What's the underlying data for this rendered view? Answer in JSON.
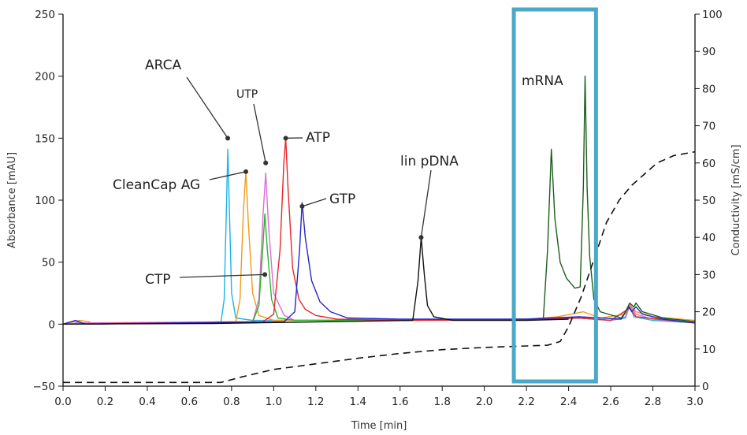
{
  "chart_data": {
    "type": "line",
    "title": "",
    "xlabel": "Time [min]",
    "ylabel": "Absorbance [mAU]",
    "y2label": "Conductivity [mS/cm]",
    "xlim": [
      0,
      3.0
    ],
    "ylim": [
      -50,
      250
    ],
    "y2lim": [
      0,
      100
    ],
    "x_ticks": [
      "0.0",
      "0.2",
      "0.4",
      "0.6",
      "0.8",
      "1.0",
      "1.2",
      "1.4",
      "1.6",
      "1.8",
      "2.0",
      "2.2",
      "2.4",
      "2.6",
      "2.8",
      "3.0"
    ],
    "y_ticks": [
      "-50",
      "0",
      "50",
      "100",
      "150",
      "200",
      "250"
    ],
    "y2_ticks": [
      "0",
      "10",
      "20",
      "30",
      "40",
      "50",
      "60",
      "70",
      "80",
      "90",
      "100"
    ],
    "highlight": {
      "label": "mRNA",
      "x_range": [
        2.14,
        2.53
      ],
      "color": "#4aa8c8"
    },
    "series": [
      {
        "name": "ARCA",
        "color": "#1ab4e6",
        "axis": "left",
        "points": [
          [
            0,
            0
          ],
          [
            0.05,
            0
          ],
          [
            0.07,
            2
          ],
          [
            0.09,
            1
          ],
          [
            0.1,
            0
          ],
          [
            0.7,
            1.5
          ],
          [
            0.75,
            2
          ],
          [
            0.765,
            20
          ],
          [
            0.775,
            90
          ],
          [
            0.782,
            141
          ],
          [
            0.79,
            90
          ],
          [
            0.8,
            25
          ],
          [
            0.82,
            5
          ],
          [
            0.9,
            3
          ],
          [
            1.6,
            3.5
          ],
          [
            2.2,
            4
          ],
          [
            2.45,
            5
          ],
          [
            2.6,
            3
          ],
          [
            2.67,
            5
          ],
          [
            2.69,
            15
          ],
          [
            2.71,
            6
          ],
          [
            2.8,
            3
          ],
          [
            3.0,
            1
          ]
        ]
      },
      {
        "name": "CleanCap AG",
        "color": "#f29a1a",
        "axis": "left",
        "points": [
          [
            0,
            0
          ],
          [
            0.08,
            3
          ],
          [
            0.12,
            2
          ],
          [
            0.15,
            0
          ],
          [
            0.82,
            2
          ],
          [
            0.84,
            20
          ],
          [
            0.856,
            90
          ],
          [
            0.868,
            123
          ],
          [
            0.88,
            80
          ],
          [
            0.9,
            25
          ],
          [
            0.93,
            7
          ],
          [
            1.0,
            3
          ],
          [
            1.6,
            3
          ],
          [
            2.2,
            4
          ],
          [
            2.35,
            6
          ],
          [
            2.47,
            10
          ],
          [
            2.55,
            5
          ],
          [
            2.67,
            8
          ],
          [
            2.69,
            16
          ],
          [
            2.72,
            10
          ],
          [
            2.8,
            6
          ],
          [
            3.0,
            3
          ]
        ]
      },
      {
        "name": "UTP",
        "color": "#e06ad8",
        "axis": "left",
        "points": [
          [
            0,
            0
          ],
          [
            0.08,
            1
          ],
          [
            0.9,
            2
          ],
          [
            0.93,
            20
          ],
          [
            0.95,
            90
          ],
          [
            0.962,
            122
          ],
          [
            0.975,
            80
          ],
          [
            1.0,
            25
          ],
          [
            1.05,
            7
          ],
          [
            1.1,
            3
          ],
          [
            1.6,
            3.5
          ],
          [
            2.2,
            4
          ],
          [
            2.45,
            5
          ],
          [
            2.6,
            3
          ],
          [
            2.67,
            6
          ],
          [
            2.69,
            15
          ],
          [
            2.72,
            8
          ],
          [
            2.8,
            4
          ],
          [
            3.0,
            1
          ]
        ]
      },
      {
        "name": "CTP",
        "color": "#2bb52b",
        "axis": "left",
        "points": [
          [
            0,
            0
          ],
          [
            0.9,
            1.5
          ],
          [
            0.93,
            15
          ],
          [
            0.948,
            60
          ],
          [
            0.958,
            89
          ],
          [
            0.97,
            60
          ],
          [
            0.99,
            20
          ],
          [
            1.02,
            5
          ],
          [
            1.1,
            3
          ],
          [
            1.6,
            3
          ],
          [
            2.2,
            4
          ],
          [
            2.45,
            5
          ],
          [
            2.6,
            3
          ],
          [
            2.69,
            13
          ],
          [
            2.72,
            6
          ],
          [
            3.0,
            1
          ]
        ]
      },
      {
        "name": "ATP",
        "color": "#e8252a",
        "axis": "left",
        "points": [
          [
            0,
            0
          ],
          [
            0.95,
            2
          ],
          [
            1.0,
            8
          ],
          [
            1.03,
            60
          ],
          [
            1.048,
            130
          ],
          [
            1.057,
            150
          ],
          [
            1.068,
            110
          ],
          [
            1.09,
            45
          ],
          [
            1.12,
            20
          ],
          [
            1.15,
            12
          ],
          [
            1.2,
            7
          ],
          [
            1.3,
            4
          ],
          [
            1.6,
            3
          ],
          [
            2.2,
            3.5
          ],
          [
            2.45,
            5
          ],
          [
            2.6,
            3
          ],
          [
            2.69,
            13
          ],
          [
            2.72,
            6
          ],
          [
            3.0,
            1
          ]
        ]
      },
      {
        "name": "GTP",
        "color": "#2424cc",
        "axis": "left",
        "points": [
          [
            0,
            0
          ],
          [
            0.06,
            3
          ],
          [
            0.09,
            1
          ],
          [
            0.11,
            0
          ],
          [
            1.05,
            2
          ],
          [
            1.1,
            10
          ],
          [
            1.123,
            60
          ],
          [
            1.135,
            98
          ],
          [
            1.15,
            70
          ],
          [
            1.18,
            35
          ],
          [
            1.22,
            18
          ],
          [
            1.27,
            10
          ],
          [
            1.35,
            5
          ],
          [
            1.6,
            4
          ],
          [
            2.2,
            4
          ],
          [
            2.45,
            6
          ],
          [
            2.55,
            5
          ],
          [
            2.65,
            4
          ],
          [
            2.685,
            14
          ],
          [
            2.7,
            10
          ],
          [
            2.72,
            14
          ],
          [
            2.75,
            8
          ],
          [
            2.85,
            4
          ],
          [
            3.0,
            1
          ]
        ]
      },
      {
        "name": "lin pDNA",
        "color": "#111111",
        "axis": "left",
        "points": [
          [
            0,
            0
          ],
          [
            0.7,
            0.5
          ],
          [
            1.66,
            3
          ],
          [
            1.685,
            35
          ],
          [
            1.7,
            70
          ],
          [
            1.715,
            40
          ],
          [
            1.73,
            15
          ],
          [
            1.76,
            6
          ],
          [
            1.85,
            3
          ],
          [
            2.2,
            3
          ],
          [
            2.4,
            4
          ]
        ]
      },
      {
        "name": "mRNA",
        "color": "#1c5e1c",
        "axis": "left",
        "points": [
          [
            2.28,
            4
          ],
          [
            2.3,
            60
          ],
          [
            2.318,
            141
          ],
          [
            2.335,
            85
          ],
          [
            2.36,
            50
          ],
          [
            2.39,
            37
          ],
          [
            2.43,
            29
          ],
          [
            2.455,
            30
          ],
          [
            2.47,
            110
          ],
          [
            2.478,
            200
          ],
          [
            2.488,
            110
          ],
          [
            2.5,
            55
          ],
          [
            2.52,
            20
          ],
          [
            2.55,
            10
          ],
          [
            2.65,
            5
          ],
          [
            2.67,
            10
          ],
          [
            2.69,
            17
          ],
          [
            2.71,
            14
          ],
          [
            2.72,
            17
          ],
          [
            2.75,
            10
          ],
          [
            2.85,
            5
          ],
          [
            3.0,
            2
          ]
        ]
      },
      {
        "name": "Conductivity",
        "color": "#111111",
        "axis": "right",
        "dashed": true,
        "points": [
          [
            0,
            1
          ],
          [
            0.75,
            1
          ],
          [
            0.85,
            2.5
          ],
          [
            1.0,
            4.5
          ],
          [
            1.2,
            6
          ],
          [
            1.4,
            7.5
          ],
          [
            1.6,
            8.8
          ],
          [
            1.8,
            9.8
          ],
          [
            2.0,
            10.4
          ],
          [
            2.2,
            10.8
          ],
          [
            2.3,
            11
          ],
          [
            2.36,
            12
          ],
          [
            2.4,
            16
          ],
          [
            2.46,
            24
          ],
          [
            2.52,
            34
          ],
          [
            2.58,
            44
          ],
          [
            2.64,
            50
          ],
          [
            2.7,
            54
          ],
          [
            2.76,
            57
          ],
          [
            2.82,
            60
          ],
          [
            2.9,
            62
          ],
          [
            3.0,
            63
          ]
        ]
      }
    ],
    "annotations": [
      {
        "text": "ARCA",
        "size": "large",
        "dot": [
          0.782,
          150
        ]
      },
      {
        "text": "UTP",
        "size": "small",
        "dot": [
          0.962,
          130
        ]
      },
      {
        "text": "ATP",
        "size": "large",
        "dot": [
          1.057,
          150
        ]
      },
      {
        "text": "CleanCap AG",
        "size": "large",
        "dot": [
          0.868,
          123
        ]
      },
      {
        "text": "GTP",
        "size": "large",
        "dot": [
          1.135,
          95
        ]
      },
      {
        "text": "lin pDNA",
        "size": "large",
        "dot": [
          1.7,
          70
        ]
      },
      {
        "text": "CTP",
        "size": "large",
        "dot": [
          0.958,
          40
        ]
      },
      {
        "text": "mRNA",
        "size": "large",
        "dot": null
      }
    ]
  }
}
